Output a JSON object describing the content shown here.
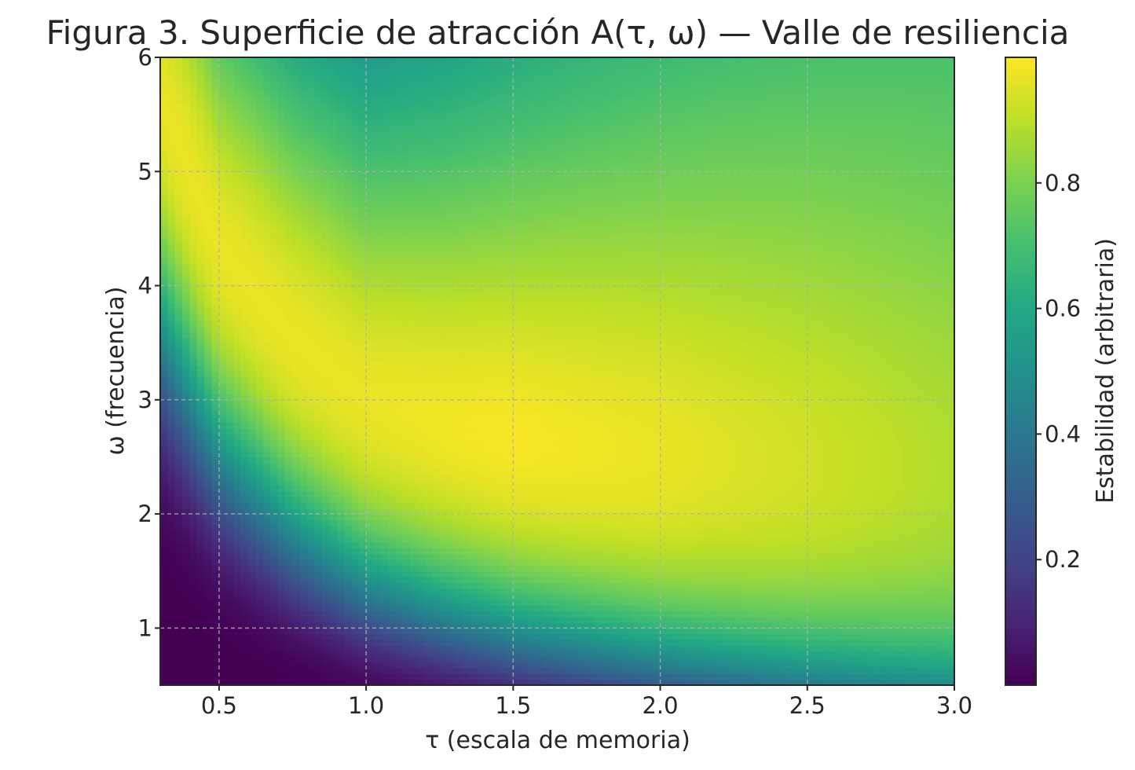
{
  "chart_data": {
    "type": "heatmap",
    "title": "Figura 3. Superficie de atracción A(τ, ω) — Valle de resiliencia",
    "xlabel": "τ (escala de memoria)",
    "ylabel": "ω (frecuencia)",
    "colorbar_label": "Estabilidad (arbitraria)",
    "colormap": "viridis",
    "xlim": [
      0.3,
      3.0
    ],
    "ylim": [
      0.5,
      6.0
    ],
    "clim": [
      0.0,
      1.0
    ],
    "x_ticks": [
      0.5,
      1.0,
      1.5,
      2.0,
      2.5,
      3.0
    ],
    "x_tick_labels": [
      "0.5",
      "1.0",
      "1.5",
      "2.0",
      "2.5",
      "3.0"
    ],
    "y_ticks": [
      1,
      2,
      3,
      4,
      5,
      6
    ],
    "y_tick_labels": [
      "1",
      "2",
      "3",
      "4",
      "5",
      "6"
    ],
    "colorbar_ticks": [
      0.2,
      0.4,
      0.6,
      0.8
    ],
    "colorbar_tick_labels": [
      "0.2",
      "0.4",
      "0.6",
      "0.8"
    ],
    "grid": true,
    "ridge": {
      "tau": [
        0.3,
        0.5,
        0.75,
        1.0,
        1.25,
        1.5,
        2.0,
        2.5,
        3.0
      ],
      "omega_peak": [
        5.65,
        4.33,
        3.55,
        3.0,
        2.8,
        2.67,
        2.53,
        2.45,
        2.4
      ],
      "peak_value": [
        0.97,
        0.97,
        0.97,
        0.97,
        0.98,
        0.99,
        0.97,
        0.93,
        0.88
      ]
    }
  },
  "colors": {
    "viridis": [
      "#440154",
      "#482475",
      "#414487",
      "#355f8d",
      "#2a788e",
      "#21918c",
      "#22a884",
      "#44bf70",
      "#7ad151",
      "#bddf26",
      "#fde725"
    ],
    "grid": "#b0b0b0",
    "axis": "#262626"
  }
}
